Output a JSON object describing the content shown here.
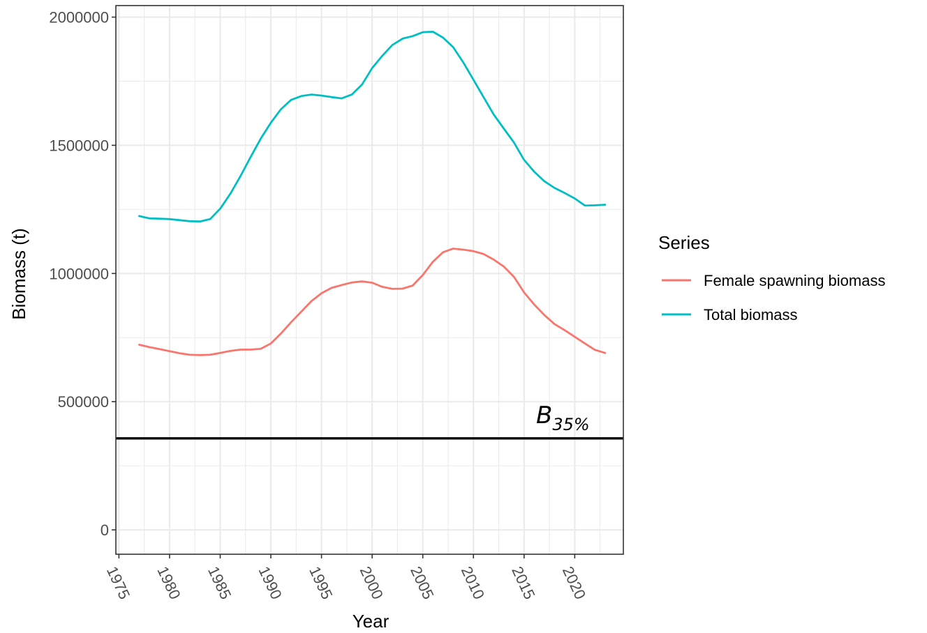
{
  "chart_data": {
    "type": "line",
    "title": "",
    "xlabel": "Year",
    "ylabel": "Biomass (t)",
    "xlim": [
      1974.7,
      2024.8
    ],
    "ylim": [
      -95000,
      2045000
    ],
    "x_ticks": [
      1975,
      1980,
      1985,
      1990,
      1995,
      2000,
      2005,
      2010,
      2015,
      2020
    ],
    "y_ticks": [
      0,
      500000,
      1000000,
      1500000,
      2000000
    ],
    "grid": true,
    "legend": {
      "title": "Series",
      "position": "right"
    },
    "reference_line": {
      "y": 357000,
      "label_main": "B",
      "label_sub": "35%",
      "color": "#000000"
    },
    "series": [
      {
        "name": "Female spawning biomass",
        "color": "#F8766D",
        "x": [
          1977,
          1978,
          1979,
          1980,
          1981,
          1982,
          1983,
          1984,
          1985,
          1986,
          1987,
          1988,
          1989,
          1990,
          1991,
          1992,
          1993,
          1994,
          1995,
          1996,
          1997,
          1998,
          1999,
          2000,
          2001,
          2002,
          2003,
          2004,
          2005,
          2006,
          2007,
          2008,
          2009,
          2010,
          2011,
          2012,
          2013,
          2014,
          2015,
          2016,
          2017,
          2018,
          2019,
          2020,
          2021,
          2022,
          2023
        ],
        "y": [
          722000,
          713000,
          705000,
          697000,
          689000,
          683000,
          682000,
          683000,
          690000,
          698000,
          703000,
          703000,
          706000,
          727000,
          766000,
          810000,
          851000,
          892000,
          923000,
          944000,
          955000,
          965000,
          969000,
          964000,
          948000,
          940000,
          941000,
          953000,
          994000,
          1046000,
          1083000,
          1097000,
          1093000,
          1087000,
          1076000,
          1054000,
          1027000,
          987000,
          926000,
          879000,
          838000,
          803000,
          779000,
          753000,
          727000,
          702000,
          690000
        ]
      },
      {
        "name": "Total biomass",
        "color": "#00BFC4",
        "x": [
          1977,
          1978,
          1979,
          1980,
          1981,
          1982,
          1983,
          1984,
          1985,
          1986,
          1987,
          1988,
          1989,
          1990,
          1991,
          1992,
          1993,
          1994,
          1995,
          1996,
          1997,
          1998,
          1999,
          2000,
          2001,
          2002,
          2003,
          2004,
          2005,
          2006,
          2007,
          2008,
          2009,
          2010,
          2011,
          2012,
          2013,
          2014,
          2015,
          2016,
          2017,
          2018,
          2019,
          2020,
          2021,
          2022,
          2023
        ],
        "y": [
          1224000,
          1215000,
          1214000,
          1212000,
          1208000,
          1204000,
          1203000,
          1212000,
          1253000,
          1311000,
          1380000,
          1454000,
          1526000,
          1588000,
          1641000,
          1677000,
          1692000,
          1698000,
          1694000,
          1688000,
          1683000,
          1698000,
          1737000,
          1801000,
          1849000,
          1891000,
          1916000,
          1926000,
          1941000,
          1943000,
          1920000,
          1883000,
          1823000,
          1756000,
          1688000,
          1620000,
          1565000,
          1511000,
          1443000,
          1397000,
          1360000,
          1334000,
          1314000,
          1293000,
          1265000,
          1266000,
          1268000
        ]
      }
    ]
  }
}
